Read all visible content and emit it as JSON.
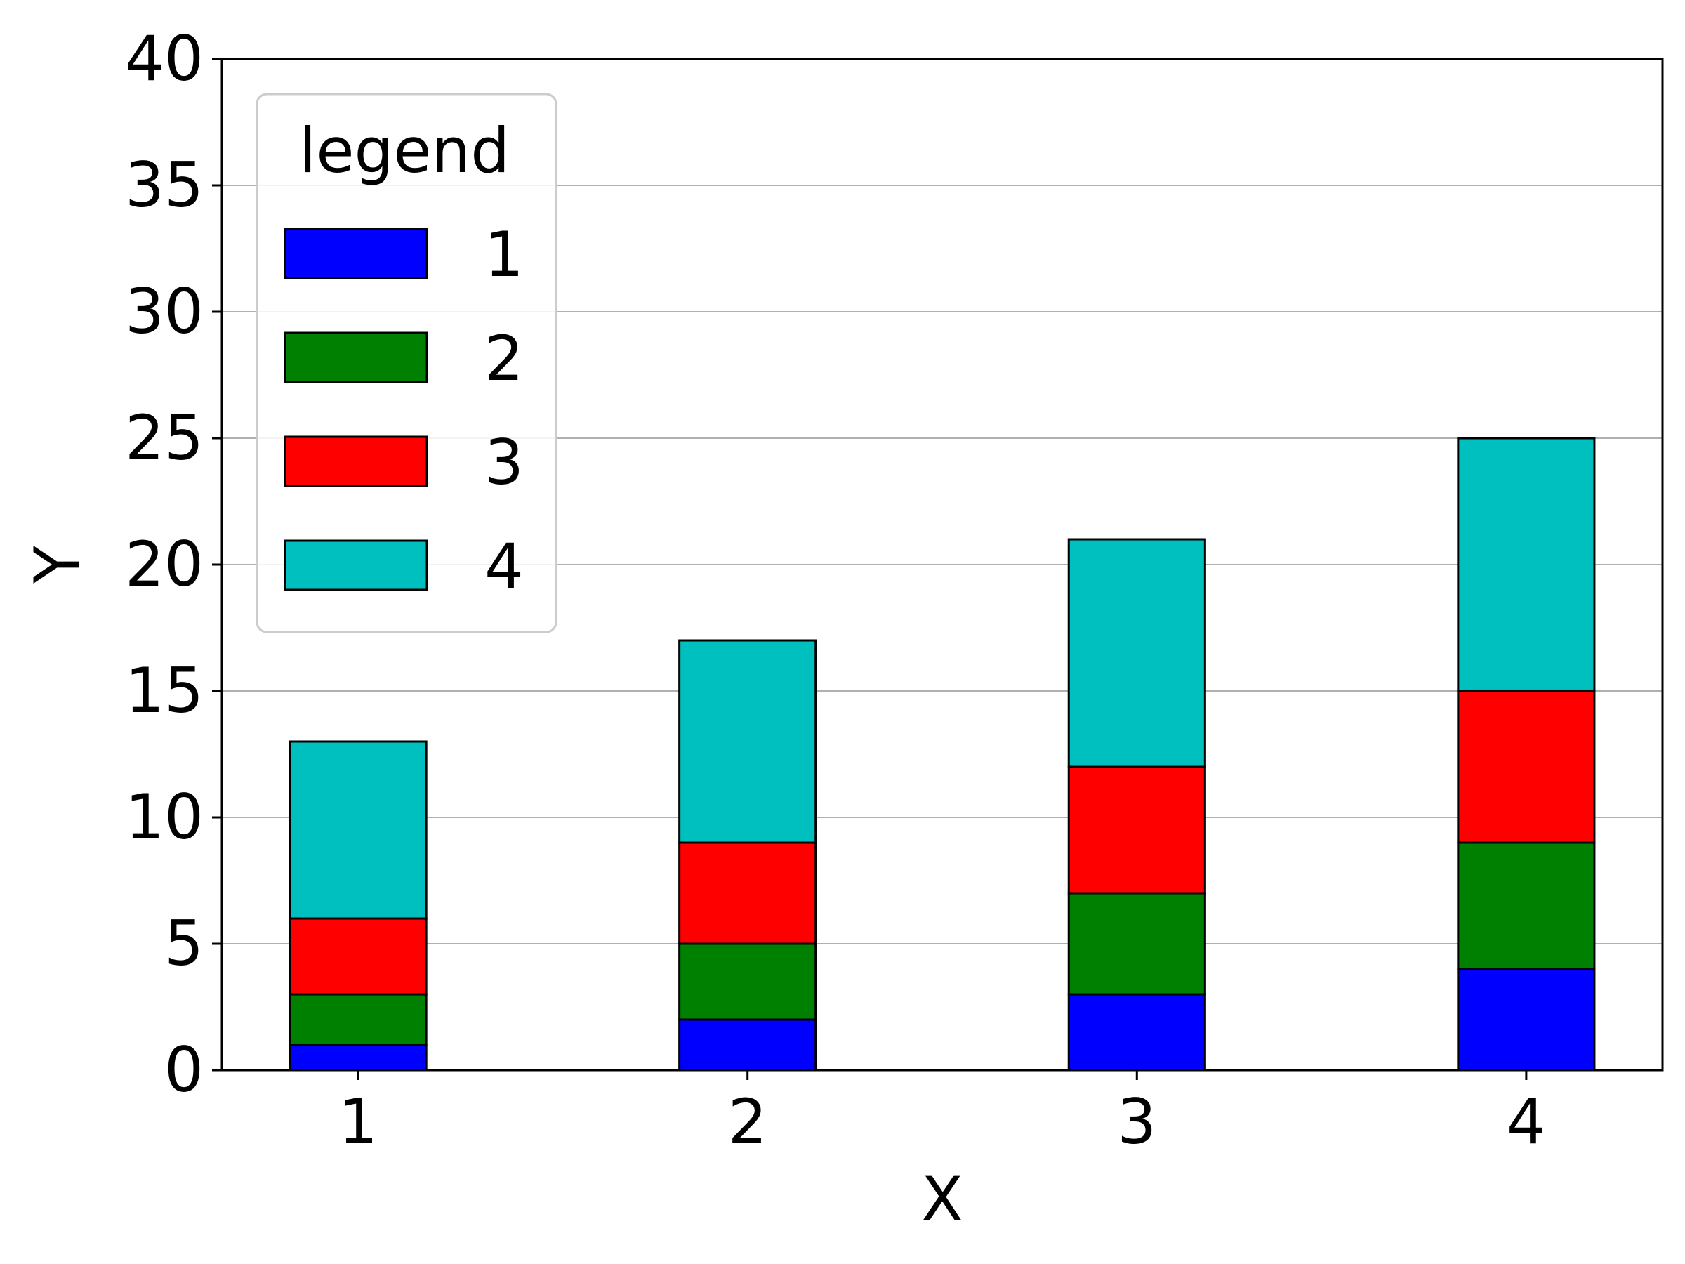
{
  "chart_data": {
    "type": "bar",
    "stacked": true,
    "title": "",
    "xlabel": "X",
    "ylabel": "Y",
    "categories": [
      "1",
      "2",
      "3",
      "4"
    ],
    "x": [
      1,
      2,
      3,
      4
    ],
    "ylim": [
      0,
      40
    ],
    "yticks": [
      0,
      5,
      10,
      15,
      20,
      25,
      30,
      35,
      40
    ],
    "grid": "y",
    "series": [
      {
        "name": "1",
        "color": "#0000ff",
        "values": [
          1,
          2,
          3,
          4
        ]
      },
      {
        "name": "2",
        "color": "#008000",
        "values": [
          2,
          3,
          4,
          5
        ]
      },
      {
        "name": "3",
        "color": "#ff0000",
        "values": [
          3,
          4,
          5,
          6
        ]
      },
      {
        "name": "4",
        "color": "#00bfbf",
        "values": [
          7,
          8,
          9,
          10
        ]
      }
    ],
    "legend": {
      "title": "legend",
      "placement": "upper-left"
    }
  }
}
